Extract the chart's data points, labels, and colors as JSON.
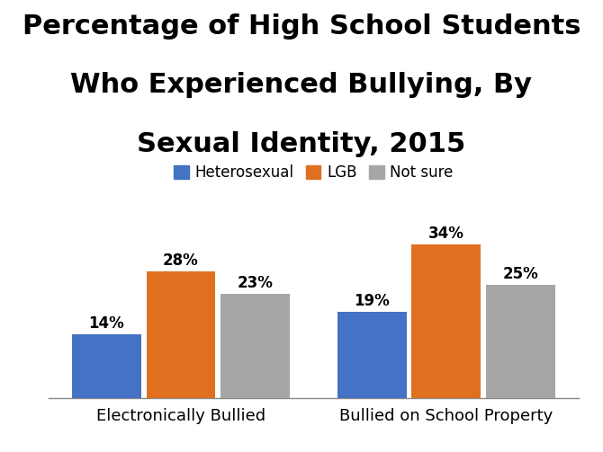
{
  "title_line1": "Percentage of High School Students",
  "title_line2": "Who Experienced Bullying, By",
  "title_line3_bold": "Sexual Identity",
  "title_line3_normal": ", 2015",
  "categories": [
    "Electronically Bullied",
    "Bullied on School Property"
  ],
  "series": {
    "Heterosexual": [
      14,
      19
    ],
    "LGB": [
      28,
      34
    ],
    "Not sure": [
      23,
      25
    ]
  },
  "colors": {
    "Heterosexual": "#4472C4",
    "LGB": "#E07020",
    "Not sure": "#A6A6A6"
  },
  "bar_width": 0.13,
  "ylim": [
    0,
    42
  ],
  "legend_labels": [
    "Heterosexual",
    "LGB",
    "Not sure"
  ],
  "background_color": "#FFFFFF",
  "label_fontsize": 12,
  "title_fontsize": 22,
  "xlabel_fontsize": 13,
  "legend_fontsize": 12
}
